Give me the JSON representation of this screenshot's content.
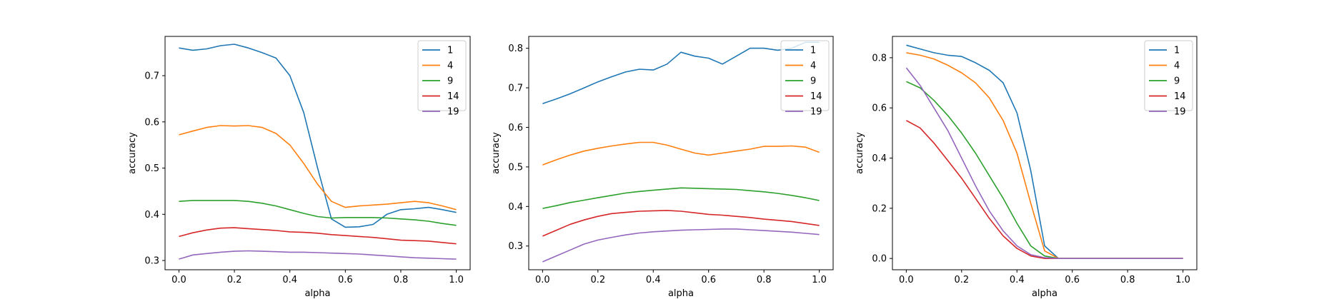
{
  "chart_data": [
    {
      "type": "line",
      "xlabel": "alpha",
      "ylabel": "accuracy",
      "xlim": [
        -0.05,
        1.05
      ],
      "ylim": [
        0.28,
        0.785
      ],
      "xticks": [
        "0.0",
        "0.2",
        "0.4",
        "0.6",
        "0.8",
        "1.0"
      ],
      "yticks": [
        "0.3",
        "0.4",
        "0.5",
        "0.6",
        "0.7"
      ],
      "legend_position": "top-right",
      "x": [
        0.0,
        0.05,
        0.1,
        0.15,
        0.2,
        0.25,
        0.3,
        0.35,
        0.4,
        0.45,
        0.5,
        0.55,
        0.6,
        0.65,
        0.7,
        0.75,
        0.8,
        0.85,
        0.9,
        0.95,
        1.0
      ],
      "series": [
        {
          "name": "1",
          "color": "#1f77b4",
          "values": [
            0.76,
            0.755,
            0.758,
            0.765,
            0.768,
            0.76,
            0.75,
            0.738,
            0.7,
            0.62,
            0.5,
            0.39,
            0.372,
            0.373,
            0.378,
            0.4,
            0.41,
            0.412,
            0.415,
            0.41,
            0.404
          ]
        },
        {
          "name": "4",
          "color": "#ff7f0e",
          "values": [
            0.572,
            0.58,
            0.588,
            0.592,
            0.591,
            0.592,
            0.588,
            0.575,
            0.55,
            0.51,
            0.465,
            0.428,
            0.415,
            0.418,
            0.42,
            0.422,
            0.425,
            0.428,
            0.425,
            0.418,
            0.41
          ]
        },
        {
          "name": "9",
          "color": "#2ca02c",
          "values": [
            0.428,
            0.43,
            0.43,
            0.43,
            0.43,
            0.428,
            0.424,
            0.418,
            0.41,
            0.402,
            0.395,
            0.392,
            0.393,
            0.393,
            0.393,
            0.392,
            0.39,
            0.388,
            0.385,
            0.38,
            0.376
          ]
        },
        {
          "name": "14",
          "color": "#d62728",
          "values": [
            0.352,
            0.36,
            0.366,
            0.37,
            0.371,
            0.369,
            0.367,
            0.365,
            0.362,
            0.361,
            0.359,
            0.356,
            0.354,
            0.352,
            0.35,
            0.347,
            0.344,
            0.343,
            0.342,
            0.339,
            0.336
          ]
        },
        {
          "name": "19",
          "color": "#9467bd",
          "values": [
            0.303,
            0.312,
            0.315,
            0.318,
            0.32,
            0.321,
            0.32,
            0.319,
            0.318,
            0.318,
            0.317,
            0.316,
            0.315,
            0.314,
            0.312,
            0.31,
            0.308,
            0.306,
            0.305,
            0.304,
            0.303
          ]
        }
      ]
    },
    {
      "type": "line",
      "xlabel": "alpha",
      "ylabel": "accuracy",
      "xlim": [
        -0.05,
        1.05
      ],
      "ylim": [
        0.24,
        0.83
      ],
      "xticks": [
        "0.0",
        "0.2",
        "0.4",
        "0.6",
        "0.8",
        "1.0"
      ],
      "yticks": [
        "0.3",
        "0.4",
        "0.5",
        "0.6",
        "0.7",
        "0.8"
      ],
      "legend_position": "top-right",
      "x": [
        0.0,
        0.05,
        0.1,
        0.15,
        0.2,
        0.25,
        0.3,
        0.35,
        0.4,
        0.45,
        0.5,
        0.55,
        0.6,
        0.65,
        0.7,
        0.75,
        0.8,
        0.85,
        0.9,
        0.95,
        1.0
      ],
      "series": [
        {
          "name": "1",
          "color": "#1f77b4",
          "values": [
            0.66,
            0.672,
            0.685,
            0.7,
            0.715,
            0.728,
            0.74,
            0.747,
            0.745,
            0.76,
            0.79,
            0.78,
            0.775,
            0.76,
            0.78,
            0.8,
            0.8,
            0.795,
            0.8,
            0.815,
            0.815
          ]
        },
        {
          "name": "4",
          "color": "#ff7f0e",
          "values": [
            0.505,
            0.518,
            0.53,
            0.54,
            0.547,
            0.553,
            0.558,
            0.562,
            0.562,
            0.555,
            0.545,
            0.535,
            0.53,
            0.535,
            0.54,
            0.545,
            0.552,
            0.552,
            0.553,
            0.55,
            0.537
          ]
        },
        {
          "name": "9",
          "color": "#2ca02c",
          "values": [
            0.395,
            0.402,
            0.41,
            0.416,
            0.422,
            0.428,
            0.434,
            0.438,
            0.441,
            0.444,
            0.447,
            0.446,
            0.445,
            0.444,
            0.443,
            0.44,
            0.437,
            0.433,
            0.428,
            0.422,
            0.415
          ]
        },
        {
          "name": "14",
          "color": "#d62728",
          "values": [
            0.325,
            0.34,
            0.355,
            0.366,
            0.375,
            0.382,
            0.385,
            0.388,
            0.389,
            0.39,
            0.388,
            0.384,
            0.38,
            0.378,
            0.375,
            0.372,
            0.368,
            0.365,
            0.362,
            0.357,
            0.352
          ]
        },
        {
          "name": "19",
          "color": "#9467bd",
          "values": [
            0.26,
            0.275,
            0.29,
            0.305,
            0.315,
            0.322,
            0.328,
            0.333,
            0.336,
            0.338,
            0.34,
            0.341,
            0.342,
            0.343,
            0.343,
            0.341,
            0.339,
            0.337,
            0.335,
            0.332,
            0.329
          ]
        }
      ]
    },
    {
      "type": "line",
      "xlabel": "alpha",
      "ylabel": "accuracy",
      "xlim": [
        -0.05,
        1.05
      ],
      "ylim": [
        -0.045,
        0.885
      ],
      "xticks": [
        "0.0",
        "0.2",
        "0.4",
        "0.6",
        "0.8",
        "1.0"
      ],
      "yticks": [
        "0.0",
        "0.2",
        "0.4",
        "0.6",
        "0.8"
      ],
      "legend_position": "top-right",
      "x": [
        0.0,
        0.05,
        0.1,
        0.15,
        0.2,
        0.25,
        0.3,
        0.35,
        0.4,
        0.45,
        0.5,
        0.55,
        0.6,
        0.65,
        0.7,
        0.75,
        0.8,
        0.85,
        0.9,
        0.95,
        1.0
      ],
      "series": [
        {
          "name": "1",
          "color": "#1f77b4",
          "values": [
            0.85,
            0.835,
            0.82,
            0.81,
            0.805,
            0.78,
            0.75,
            0.7,
            0.58,
            0.35,
            0.05,
            0.0,
            0.0,
            0.0,
            0.0,
            0.0,
            0.0,
            0.0,
            0.0,
            0.0,
            0.0
          ]
        },
        {
          "name": "4",
          "color": "#ff7f0e",
          "values": [
            0.82,
            0.81,
            0.795,
            0.77,
            0.74,
            0.7,
            0.64,
            0.55,
            0.42,
            0.22,
            0.03,
            0.0,
            0.0,
            0.0,
            0.0,
            0.0,
            0.0,
            0.0,
            0.0,
            0.0,
            0.0
          ]
        },
        {
          "name": "9",
          "color": "#2ca02c",
          "values": [
            0.705,
            0.68,
            0.63,
            0.57,
            0.5,
            0.42,
            0.33,
            0.24,
            0.14,
            0.05,
            0.01,
            0.0,
            0.0,
            0.0,
            0.0,
            0.0,
            0.0,
            0.0,
            0.0,
            0.0,
            0.0
          ]
        },
        {
          "name": "14",
          "color": "#d62728",
          "values": [
            0.55,
            0.52,
            0.46,
            0.39,
            0.32,
            0.24,
            0.16,
            0.09,
            0.04,
            0.01,
            0.0,
            0.0,
            0.0,
            0.0,
            0.0,
            0.0,
            0.0,
            0.0,
            0.0,
            0.0,
            0.0
          ]
        },
        {
          "name": "19",
          "color": "#9467bd",
          "values": [
            0.76,
            0.69,
            0.6,
            0.51,
            0.4,
            0.29,
            0.19,
            0.11,
            0.05,
            0.015,
            0.003,
            0.0,
            0.0,
            0.0,
            0.0,
            0.0,
            0.0,
            0.0,
            0.0,
            0.0,
            0.0
          ]
        }
      ]
    }
  ]
}
